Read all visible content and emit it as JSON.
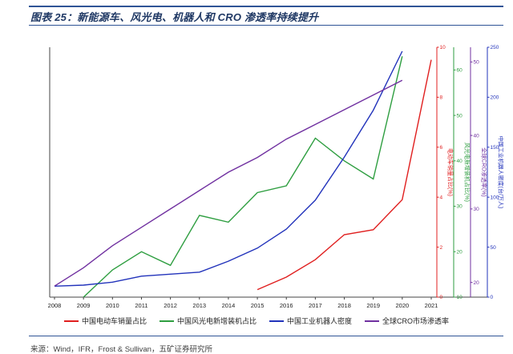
{
  "page": {
    "figure_title": "图表 25：新能源车、风光电、机器人和 CRO 渗透率持续提升",
    "source_note": "来源：Wind，IFR，Frost & Sullivan，五矿证券研究所",
    "accent_color": "#2f5496"
  },
  "chart_data": {
    "type": "line",
    "title": "图表 25：新能源车、风光电、机器人和 CRO 渗透率持续提升",
    "x": [
      2008,
      2009,
      2010,
      2011,
      2012,
      2013,
      2014,
      2015,
      2016,
      2017,
      2018,
      2019,
      2020,
      2021
    ],
    "grid": false,
    "legend_position": "bottom",
    "axes": [
      {
        "id": "ev",
        "label": "电动车销量占比(%)",
        "color": "#e01f1f",
        "min": 0,
        "max": 10,
        "ticks": [
          0,
          2,
          4,
          6,
          8,
          10
        ]
      },
      {
        "id": "wind",
        "label": "风光电新增装机占比(%)",
        "color": "#2e9e40",
        "min": 10,
        "max": 65,
        "ticks": [
          10,
          20,
          30,
          40,
          50,
          60
        ]
      },
      {
        "id": "cro",
        "label": "全球CRO渗透率(%)",
        "color": "#7030a0",
        "min": 18,
        "max": 52,
        "ticks": [
          20,
          30,
          40,
          50
        ]
      },
      {
        "id": "robot",
        "label": "中国工业机器人密度(台/万人)",
        "color": "#2233bb",
        "min": 0,
        "max": 250,
        "ticks": [
          0,
          50,
          100,
          150,
          200,
          250
        ]
      }
    ],
    "series": [
      {
        "name": "中国电动车销量占比",
        "axis": "ev",
        "color": "#e01f1f",
        "values": [
          null,
          null,
          null,
          null,
          null,
          null,
          null,
          0.3,
          0.8,
          1.5,
          2.5,
          2.7,
          3.9,
          9.5
        ]
      },
      {
        "name": "中国风光电新增装机占比",
        "axis": "wind",
        "color": "#2e9e40",
        "values": [
          null,
          10,
          16,
          20,
          17,
          28,
          26.5,
          33,
          34.5,
          45,
          40,
          36,
          63,
          null
        ]
      },
      {
        "name": "中国工业机器人密度",
        "axis": "robot",
        "color": "#2233bb",
        "values": [
          11,
          12,
          15,
          21,
          23,
          25,
          36,
          49,
          68,
          97,
          140,
          187,
          246,
          null
        ]
      },
      {
        "name": "全球CRO市场渗透率",
        "axis": "cro",
        "color": "#7030a0",
        "values": [
          19.5,
          22,
          25,
          27.5,
          30,
          32.5,
          35,
          37,
          39.5,
          41.5,
          43.5,
          45.5,
          47.5,
          null
        ]
      }
    ]
  }
}
